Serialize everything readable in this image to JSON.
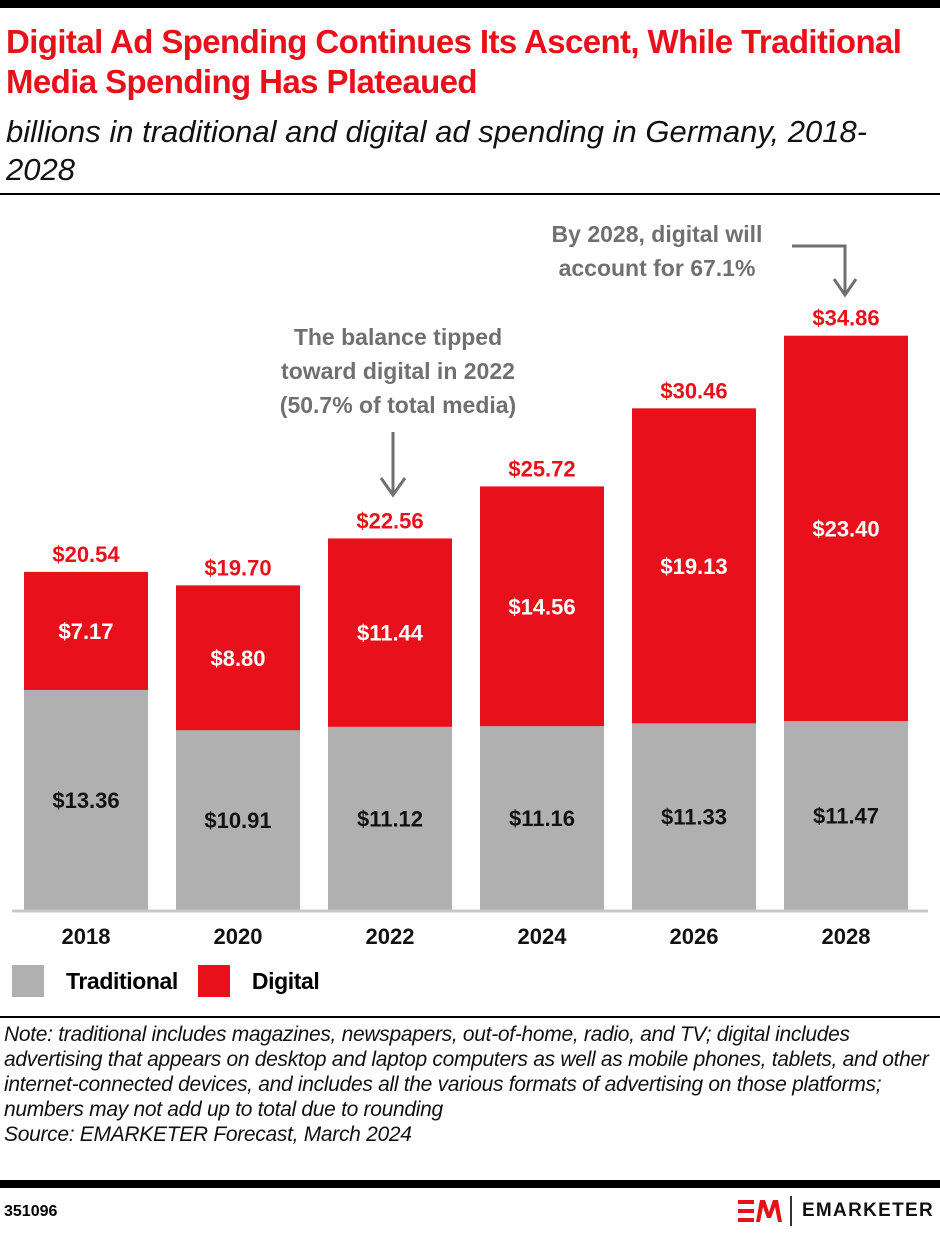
{
  "header": {
    "title": "Digital Ad Spending Continues Its Ascent, While Traditional Media Spending Has Plateaued",
    "subtitle": "billions in traditional and digital ad spending in Germany, 2018-2028"
  },
  "colors": {
    "traditional": "#b0b0b0",
    "digital": "#e8101b",
    "annotation": "#707070",
    "axis": "#c8c8c8"
  },
  "chart_data": {
    "type": "bar",
    "stacked": true,
    "title": "Digital Ad Spending Continues Its Ascent, While Traditional Media Spending Has Plateaued",
    "subtitle": "billions in traditional and digital ad spending in Germany, 2018-2028",
    "xlabel": "",
    "ylabel": "",
    "ylim": [
      0,
      36
    ],
    "grid": false,
    "categories": [
      "2018",
      "2020",
      "2022",
      "2024",
      "2026",
      "2028"
    ],
    "series": [
      {
        "name": "Traditional",
        "values": [
          13.36,
          10.91,
          11.12,
          11.16,
          11.33,
          11.47
        ],
        "labels": [
          "$13.36",
          "$10.91",
          "$11.12",
          "$11.16",
          "$11.33",
          "$11.47"
        ]
      },
      {
        "name": "Digital",
        "values": [
          7.17,
          8.8,
          11.44,
          14.56,
          19.13,
          23.4
        ],
        "labels": [
          "$7.17",
          "$8.80",
          "$11.44",
          "$14.56",
          "$19.13",
          "$23.40"
        ]
      }
    ],
    "totals": [
      20.54,
      19.7,
      22.56,
      25.72,
      30.46,
      34.86
    ],
    "total_labels": [
      "$20.54",
      "$19.70",
      "$22.56",
      "$25.72",
      "$30.46",
      "$34.86"
    ],
    "legend": {
      "placement": "bottom-left",
      "entries": [
        "Traditional",
        "Digital"
      ]
    },
    "annotations": [
      {
        "category": "2022",
        "lines": [
          "The balance tipped",
          "toward digital in 2022",
          "(50.7% of total media)"
        ]
      },
      {
        "category": "2028",
        "lines": [
          "By 2028, digital will",
          "account for 67.1%"
        ]
      }
    ]
  },
  "legend": {
    "traditional_label": "Traditional",
    "digital_label": "Digital"
  },
  "footer": {
    "note": "Note: traditional includes magazines, newspapers, out-of-home, radio, and TV; digital includes advertising that appears on desktop and laptop computers as well as mobile phones, tablets, and other internet-connected devices, and includes all the various formats of advertising on those platforms; numbers may not add up to total due to rounding",
    "source": "Source: EMARKETER Forecast, March 2024",
    "chart_id": "351096",
    "brand": "EMARKETER"
  }
}
